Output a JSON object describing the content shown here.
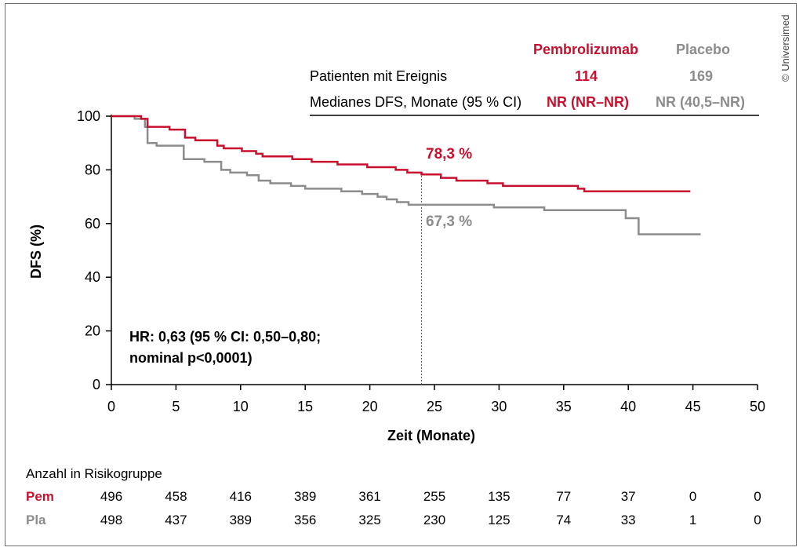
{
  "copyright": "© Universimed",
  "header": {
    "col_pem": "Pembrolizumab",
    "col_pla": "Placebo",
    "row1_label": "Patienten mit Ereignis",
    "row1_pem": "114",
    "row1_pla": "169",
    "row2_label": "Medianes DFS, Monate (95 % CI)",
    "row2_pem": "NR (NR–NR)",
    "row2_pla": "NR (40,5–NR)"
  },
  "annotation": {
    "pem_label": "78,3 %",
    "pla_label": "67,3 %",
    "hr_line1": "HR: 0,63 (95 % CI: 0,50–0,80;",
    "hr_line2": "nominal p<0,0001)"
  },
  "risk": {
    "title": "Anzahl in Risikogruppe",
    "pem_label": "Pem",
    "pla_label": "Pla",
    "pem": [
      "496",
      "458",
      "416",
      "389",
      "361",
      "255",
      "135",
      "77",
      "37",
      "0",
      "0"
    ],
    "pla": [
      "498",
      "437",
      "389",
      "356",
      "325",
      "230",
      "125",
      "74",
      "33",
      "1",
      "0"
    ]
  },
  "chart_data": {
    "type": "line",
    "xlabel": "Zeit (Monate)",
    "ylabel": "DFS (%)",
    "xlim": [
      0,
      50
    ],
    "ylim": [
      0,
      100
    ],
    "xticks": [
      "0",
      "5",
      "10",
      "15",
      "20",
      "25",
      "30",
      "35",
      "40",
      "45",
      "50"
    ],
    "yticks": [
      "0",
      "20",
      "40",
      "60",
      "80",
      "100"
    ],
    "reference_x": 24,
    "colors": {
      "pem": "#c8102e",
      "pla": "#8c8c8c"
    },
    "series": [
      {
        "name": "Pembrolizumab",
        "color": "#c8102e",
        "points": [
          [
            0,
            100
          ],
          [
            2.3,
            99
          ],
          [
            2.8,
            96
          ],
          [
            4.5,
            95
          ],
          [
            5.7,
            92
          ],
          [
            6.5,
            91
          ],
          [
            8.2,
            89
          ],
          [
            8.7,
            88
          ],
          [
            10.1,
            87
          ],
          [
            11.2,
            86
          ],
          [
            11.7,
            85
          ],
          [
            14.0,
            84
          ],
          [
            15.5,
            83
          ],
          [
            17.5,
            82
          ],
          [
            19.8,
            81
          ],
          [
            22.0,
            80
          ],
          [
            22.9,
            79
          ],
          [
            24.0,
            78.3
          ],
          [
            25.5,
            77
          ],
          [
            26.7,
            76
          ],
          [
            29.1,
            75
          ],
          [
            30.3,
            74
          ],
          [
            36.1,
            73
          ],
          [
            36.6,
            72
          ],
          [
            44.8,
            72
          ]
        ]
      },
      {
        "name": "Placebo",
        "color": "#8c8c8c",
        "points": [
          [
            0,
            100
          ],
          [
            1.8,
            99
          ],
          [
            2.6,
            96
          ],
          [
            2.8,
            90
          ],
          [
            3.5,
            89
          ],
          [
            5.6,
            84
          ],
          [
            7.2,
            83
          ],
          [
            8.5,
            80
          ],
          [
            9.2,
            79
          ],
          [
            10.5,
            78
          ],
          [
            11.4,
            76
          ],
          [
            12.3,
            75
          ],
          [
            13.9,
            74
          ],
          [
            15.0,
            73
          ],
          [
            17.8,
            72
          ],
          [
            19.4,
            71
          ],
          [
            20.6,
            70
          ],
          [
            21.3,
            69
          ],
          [
            22.1,
            68
          ],
          [
            23.0,
            67
          ],
          [
            25.6,
            67
          ],
          [
            29.6,
            66
          ],
          [
            33.5,
            65
          ],
          [
            39.8,
            62
          ],
          [
            40.8,
            56
          ],
          [
            45.6,
            56
          ]
        ]
      }
    ]
  }
}
